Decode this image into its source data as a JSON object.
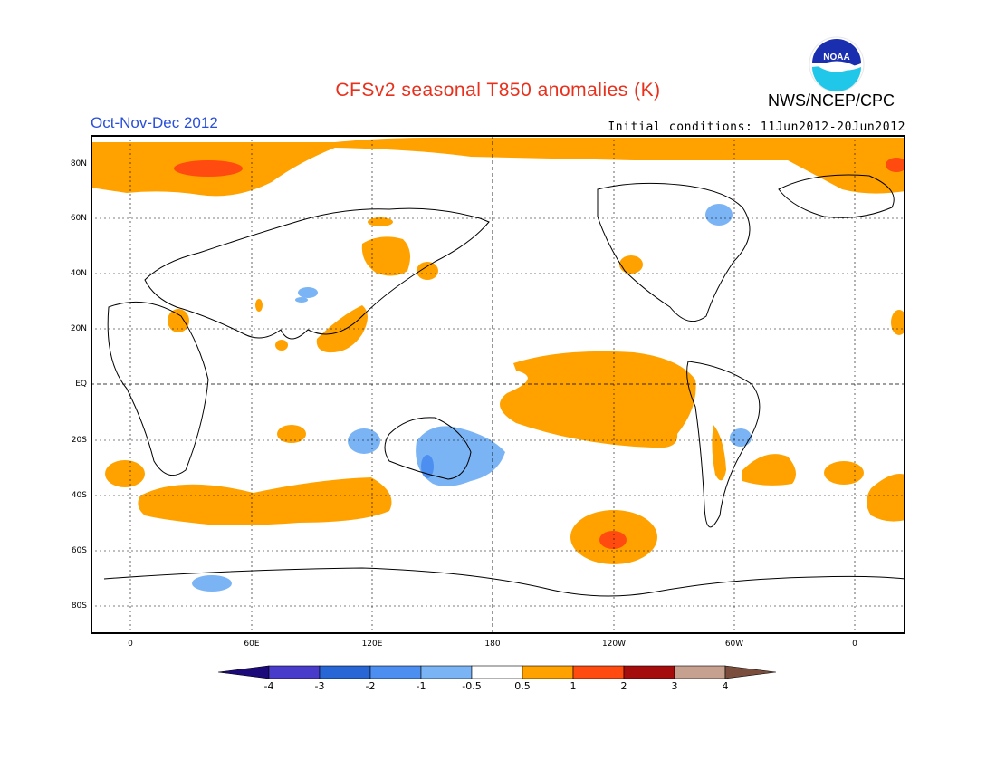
{
  "header": {
    "title": "CFSv2 seasonal T850 anomalies (K)",
    "season": "Oct-Nov-Dec 2012",
    "initial_conditions": "Initial conditions: 11Jun2012-20Jun2012",
    "agency": "NWS/NCEP/CPC",
    "logo_text": "NOAA"
  },
  "map": {
    "lat_labels": [
      "80N",
      "60N",
      "40N",
      "20N",
      "EQ",
      "20S",
      "40S",
      "60S",
      "80S"
    ],
    "lon_labels": [
      "0",
      "60E",
      "120E",
      "180",
      "120W",
      "60W",
      "0"
    ],
    "grid": "dashed, 20 degrees",
    "projection": "cylindrical equidistant, 20W to 20W"
  },
  "colorbar": {
    "labels": [
      "-4",
      "-3",
      "-2",
      "-1",
      "-0.5",
      "0.5",
      "1",
      "2",
      "3",
      "4"
    ],
    "colors": [
      "#1c0a7a",
      "#4a3ccb",
      "#2766d4",
      "#4d8ff0",
      "#7ab4f5",
      "#ffffff",
      "#ffa200",
      "#ff4a10",
      "#a50d0d",
      "#c7a190",
      "#7a4d3c"
    ]
  }
}
